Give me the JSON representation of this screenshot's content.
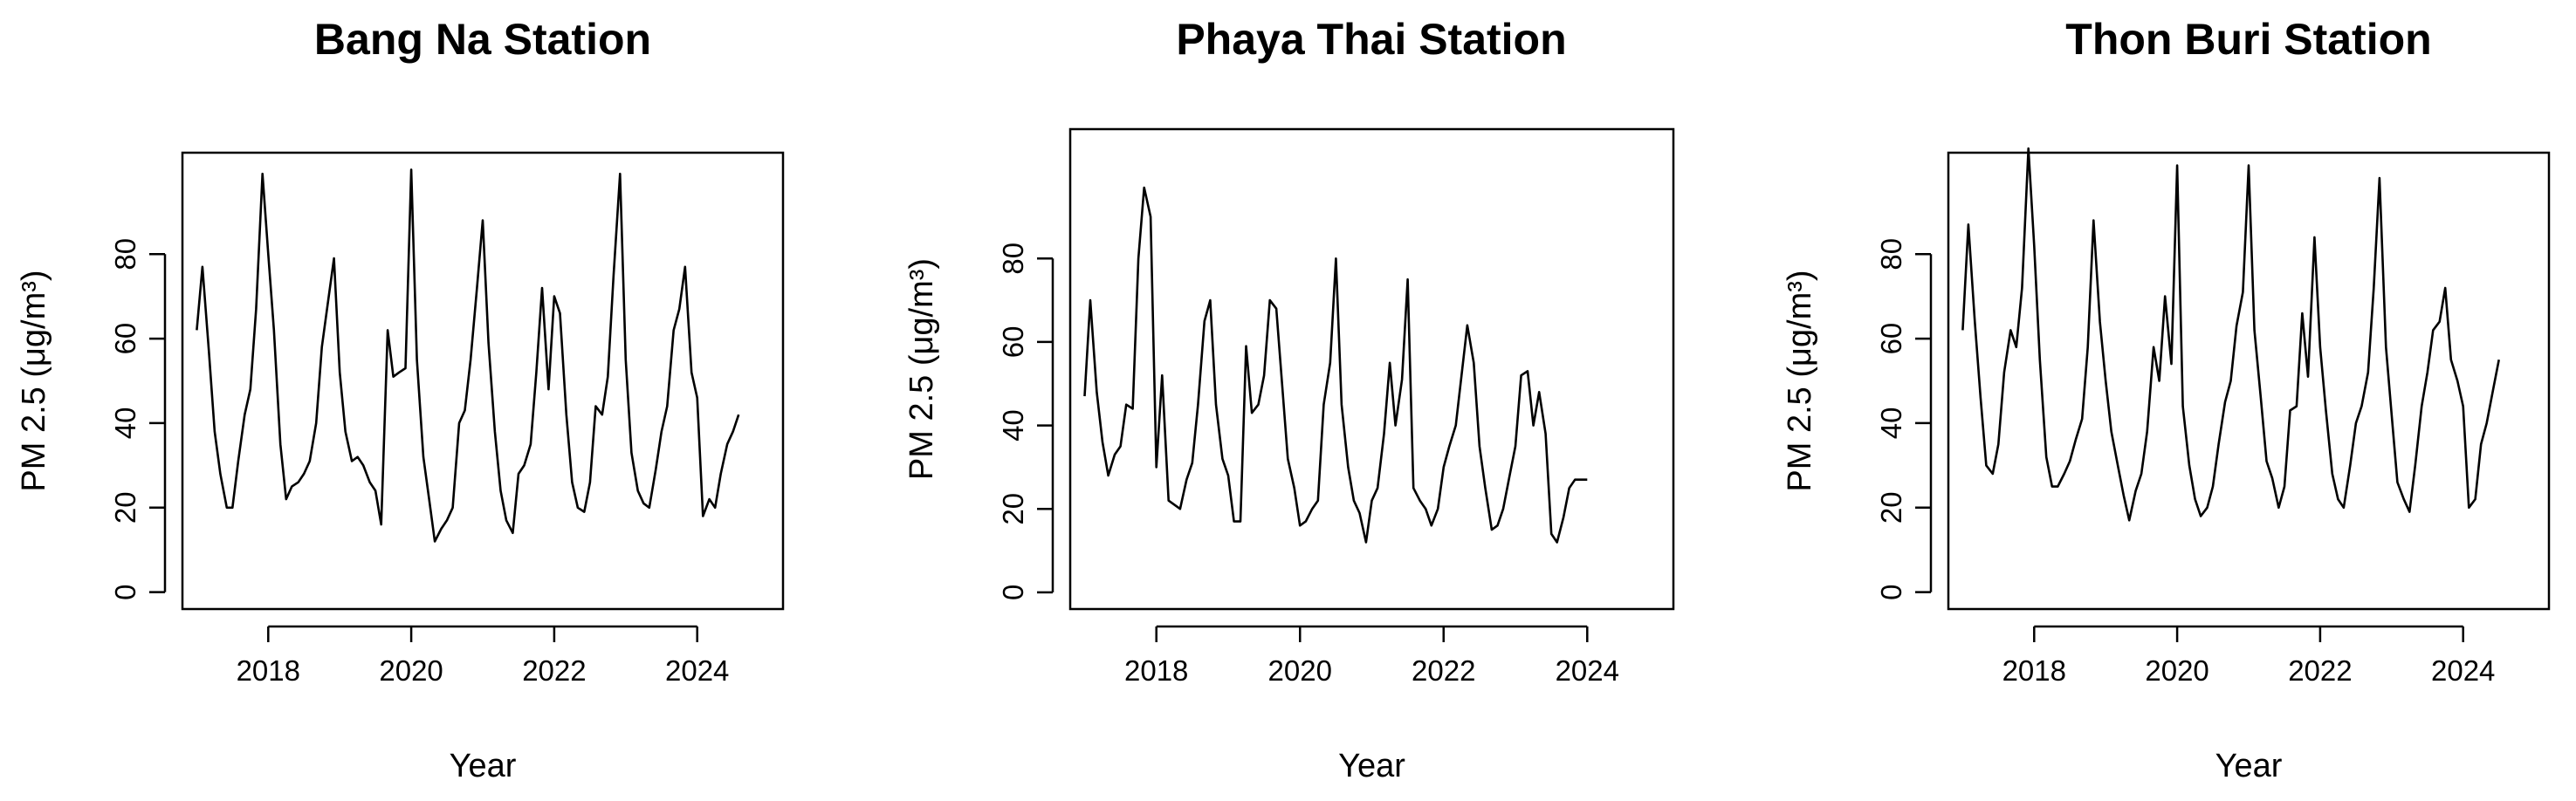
{
  "chart_data": [
    {
      "type": "line",
      "title": "Bang Na Station",
      "xlabel": "Year",
      "ylabel": "PM 2.5 (μg/m³)",
      "xlim": [
        2016.8,
        2025.2
      ],
      "ylim": [
        -4,
        104
      ],
      "xticks": [
        "2018",
        "2020",
        "2022",
        "2024"
      ],
      "yticks": [
        "0",
        "20",
        "40",
        "60",
        "80"
      ],
      "grid": false,
      "series": [
        {
          "x": [
            2017.0,
            2017.08,
            2017.17,
            2017.25,
            2017.33,
            2017.42,
            2017.5,
            2017.58,
            2017.67,
            2017.75,
            2017.83,
            2017.92,
            2018.0,
            2018.08,
            2018.17,
            2018.25,
            2018.33,
            2018.42,
            2018.5,
            2018.58,
            2018.67,
            2018.75,
            2018.83,
            2018.92,
            2019.0,
            2019.08,
            2019.17,
            2019.25,
            2019.33,
            2019.42,
            2019.5,
            2019.58,
            2019.67,
            2019.75,
            2019.83,
            2019.92,
            2020.0,
            2020.08,
            2020.17,
            2020.25,
            2020.33,
            2020.42,
            2020.5,
            2020.58,
            2020.67,
            2020.75,
            2020.83,
            2020.92,
            2021.0,
            2021.08,
            2021.17,
            2021.25,
            2021.33,
            2021.42,
            2021.5,
            2021.58,
            2021.67,
            2021.75,
            2021.83,
            2021.92,
            2022.0,
            2022.08,
            2022.17,
            2022.25,
            2022.33,
            2022.42,
            2022.5,
            2022.58,
            2022.67,
            2022.75,
            2022.83,
            2022.92,
            2023.0,
            2023.08,
            2023.17,
            2023.25,
            2023.33,
            2023.42,
            2023.5,
            2023.58,
            2023.67,
            2023.75,
            2023.83,
            2023.92,
            2024.0,
            2024.08,
            2024.17,
            2024.25,
            2024.33,
            2024.42,
            2024.5,
            2024.58,
            2024.67,
            2024.75,
            2024.83,
            2024.92
          ],
          "y": [
            62,
            77,
            57,
            38,
            28,
            20,
            20,
            31,
            42,
            48,
            67,
            99,
            80,
            62,
            35,
            22,
            25,
            26,
            28,
            31,
            40,
            58,
            68,
            79,
            52,
            38,
            31,
            32,
            30,
            26,
            24,
            16,
            62,
            51,
            52,
            53,
            100,
            55,
            32,
            22,
            12,
            15,
            17,
            20,
            40,
            43,
            55,
            72,
            88,
            59,
            38,
            24,
            17,
            14,
            28,
            30,
            35,
            52,
            72,
            48,
            70,
            66,
            42,
            26,
            20,
            19,
            26,
            44,
            42,
            51,
            75,
            99,
            55,
            33,
            24,
            21,
            20,
            29,
            38,
            44,
            62,
            67,
            77,
            52,
            46,
            18,
            22,
            20,
            28,
            35,
            38,
            42,
            null,
            null,
            null,
            null
          ]
        }
      ]
    },
    {
      "type": "line",
      "title": "Phaya Thai Station",
      "xlabel": "Year",
      "ylabel": "PM 2.5 (μg/m³)",
      "xlim": [
        2016.8,
        2025.2
      ],
      "ylim": [
        -4,
        111
      ],
      "xticks": [
        "2018",
        "2020",
        "2022",
        "2024"
      ],
      "yticks": [
        "0",
        "20",
        "40",
        "60",
        "80"
      ],
      "grid": false,
      "series": [
        {
          "x": [
            2017.0,
            2017.08,
            2017.17,
            2017.25,
            2017.33,
            2017.42,
            2017.5,
            2017.58,
            2017.67,
            2017.75,
            2017.83,
            2017.92,
            2018.0,
            2018.08,
            2018.17,
            2018.25,
            2018.33,
            2018.42,
            2018.5,
            2018.58,
            2018.67,
            2018.75,
            2018.83,
            2018.92,
            2019.0,
            2019.08,
            2019.17,
            2019.25,
            2019.33,
            2019.42,
            2019.5,
            2019.58,
            2019.67,
            2019.75,
            2019.83,
            2019.92,
            2020.0,
            2020.08,
            2020.17,
            2020.25,
            2020.33,
            2020.42,
            2020.5,
            2020.58,
            2020.67,
            2020.75,
            2020.83,
            2020.92,
            2021.0,
            2021.08,
            2021.17,
            2021.25,
            2021.33,
            2021.42,
            2021.5,
            2021.58,
            2021.67,
            2021.75,
            2021.83,
            2021.92,
            2022.0,
            2022.08,
            2022.17,
            2022.25,
            2022.33,
            2022.42,
            2022.5,
            2022.58,
            2022.67,
            2022.75,
            2022.83,
            2022.92,
            2023.0,
            2023.08,
            2023.17,
            2023.25,
            2023.33,
            2023.42,
            2023.5,
            2023.58,
            2023.67,
            2023.75,
            2023.83,
            2023.92,
            2024.0,
            2024.08,
            2024.17,
            2024.25,
            2024.33,
            2024.42,
            2024.5,
            2024.58,
            2024.67,
            2024.75,
            2024.83,
            2024.92
          ],
          "y": [
            47,
            70,
            48,
            36,
            28,
            33,
            35,
            45,
            44,
            80,
            97,
            90,
            30,
            52,
            22,
            21,
            20,
            27,
            31,
            45,
            65,
            70,
            45,
            32,
            28,
            17,
            17,
            59,
            43,
            45,
            52,
            70,
            68,
            50,
            32,
            25,
            16,
            17,
            20,
            22,
            45,
            55,
            80,
            45,
            30,
            22,
            19,
            12,
            22,
            25,
            38,
            55,
            40,
            51,
            75,
            25,
            22,
            20,
            16,
            20,
            30,
            35,
            40,
            52,
            64,
            55,
            35,
            25,
            15,
            16,
            20,
            28,
            35,
            52,
            53,
            40,
            48,
            38,
            14,
            12,
            18,
            25,
            27,
            27,
            27,
            null,
            null,
            null,
            null,
            null,
            null,
            null,
            null,
            null,
            null,
            null
          ]
        }
      ]
    },
    {
      "type": "line",
      "title": "Thon Buri Station",
      "xlabel": "Year",
      "ylabel": "PM 2.5 (μg/m³)",
      "xlim": [
        2016.8,
        2025.2
      ],
      "ylim": [
        -4,
        104
      ],
      "xticks": [
        "2018",
        "2020",
        "2022",
        "2024"
      ],
      "yticks": [
        "0",
        "20",
        "40",
        "60",
        "80"
      ],
      "grid": false,
      "series": [
        {
          "x": [
            2017.0,
            2017.08,
            2017.17,
            2017.25,
            2017.33,
            2017.42,
            2017.5,
            2017.58,
            2017.67,
            2017.75,
            2017.83,
            2017.92,
            2018.0,
            2018.08,
            2018.17,
            2018.25,
            2018.33,
            2018.42,
            2018.5,
            2018.58,
            2018.67,
            2018.75,
            2018.83,
            2018.92,
            2019.0,
            2019.08,
            2019.17,
            2019.25,
            2019.33,
            2019.42,
            2019.5,
            2019.58,
            2019.67,
            2019.75,
            2019.83,
            2019.92,
            2020.0,
            2020.08,
            2020.17,
            2020.25,
            2020.33,
            2020.42,
            2020.5,
            2020.58,
            2020.67,
            2020.75,
            2020.83,
            2020.92,
            2021.0,
            2021.08,
            2021.17,
            2021.25,
            2021.33,
            2021.42,
            2021.5,
            2021.58,
            2021.67,
            2021.75,
            2021.83,
            2021.92,
            2022.0,
            2022.08,
            2022.17,
            2022.25,
            2022.33,
            2022.42,
            2022.5,
            2022.58,
            2022.67,
            2022.75,
            2022.83,
            2022.92,
            2023.0,
            2023.08,
            2023.17,
            2023.25,
            2023.33,
            2023.42,
            2023.5,
            2023.58,
            2023.67,
            2023.75,
            2023.83,
            2023.92,
            2024.0,
            2024.08,
            2024.17,
            2024.25,
            2024.33,
            2024.42,
            2024.5,
            2024.58,
            2024.67,
            2024.75,
            2024.83,
            2024.92
          ],
          "y": [
            62,
            87,
            64,
            46,
            30,
            28,
            35,
            52,
            62,
            58,
            72,
            105,
            82,
            55,
            32,
            25,
            25,
            28,
            31,
            36,
            41,
            58,
            88,
            64,
            50,
            38,
            30,
            23,
            17,
            24,
            28,
            38,
            58,
            50,
            70,
            54,
            101,
            44,
            30,
            22,
            18,
            20,
            25,
            35,
            45,
            50,
            63,
            71,
            101,
            62,
            46,
            31,
            27,
            20,
            25,
            43,
            44,
            66,
            51,
            84,
            58,
            43,
            28,
            22,
            20,
            30,
            40,
            44,
            52,
            72,
            98,
            58,
            42,
            26,
            22,
            19,
            30,
            44,
            52,
            62,
            64,
            72,
            55,
            50,
            44,
            20,
            22,
            35,
            40,
            48,
            55,
            null,
            null,
            null,
            null,
            null
          ]
        }
      ]
    }
  ]
}
